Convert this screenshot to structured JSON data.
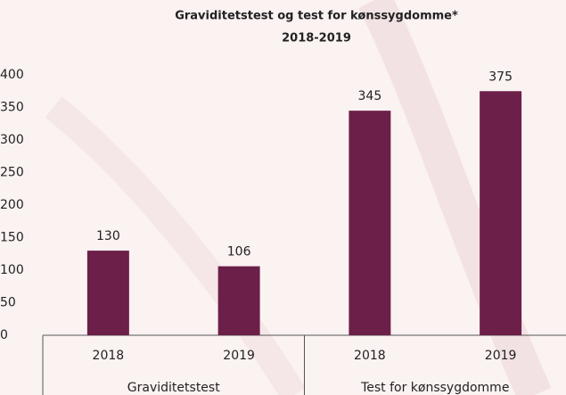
{
  "chart_data": {
    "type": "bar",
    "title": "Graviditetstest og test for kønssygdomme*",
    "subtitle": "2018-2019",
    "color": "#6c1f48",
    "groups": [
      {
        "name": "Graviditetstest",
        "categories": [
          "2018",
          "2019"
        ],
        "values": [
          130,
          106
        ]
      },
      {
        "name": "Test for kønssygdomme",
        "categories": [
          "2018",
          "2019"
        ],
        "values": [
          345,
          375
        ]
      }
    ],
    "ylim": [
      0,
      400
    ],
    "yticks": [
      0,
      50,
      100,
      150,
      200,
      250,
      300,
      350,
      400
    ],
    "grid": false
  }
}
